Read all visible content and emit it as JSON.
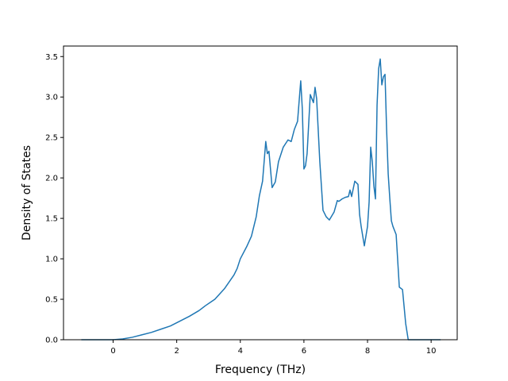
{
  "chart_data": {
    "type": "line",
    "title": "",
    "xlabel": "Frequency (THz)",
    "ylabel": "Density of States",
    "xlim": [
      -1.56,
      10.82
    ],
    "ylim": [
      0.0,
      3.63
    ],
    "xticks": [
      0,
      2,
      4,
      6,
      8,
      10
    ],
    "xtick_labels": [
      "0",
      "2",
      "4",
      "6",
      "8",
      "10"
    ],
    "yticks": [
      0.0,
      0.5,
      1.0,
      1.5,
      2.0,
      2.5,
      3.0,
      3.5
    ],
    "ytick_labels": [
      "0.0",
      "0.5",
      "1.0",
      "1.5",
      "2.0",
      "2.5",
      "3.0",
      "3.5"
    ],
    "grid": false,
    "line_color": "#1f77b4",
    "series": [
      {
        "x": [
          -1.0,
          -0.5,
          0.0,
          0.3,
          0.6,
          0.9,
          1.2,
          1.5,
          1.8,
          2.1,
          2.4,
          2.7,
          2.9,
          3.2,
          3.5,
          3.8,
          3.9,
          4.0,
          4.2,
          4.35,
          4.5,
          4.6,
          4.7,
          4.8,
          4.85,
          4.9,
          5.0,
          5.1,
          5.2,
          5.35,
          5.5,
          5.6,
          5.7,
          5.8,
          5.9,
          5.95,
          6.0,
          6.05,
          6.1,
          6.2,
          6.3,
          6.35,
          6.4,
          6.5,
          6.6,
          6.7,
          6.8,
          6.95,
          7.05,
          7.1,
          7.2,
          7.3,
          7.4,
          7.45,
          7.5,
          7.6,
          7.7,
          7.75,
          7.8,
          7.9,
          8.0,
          8.05,
          8.1,
          8.15,
          8.2,
          8.25,
          8.3,
          8.35,
          8.4,
          8.45,
          8.5,
          8.55,
          8.6,
          8.65,
          8.7,
          8.75,
          8.8,
          8.9,
          9.0,
          9.1,
          9.2,
          9.28,
          9.33,
          9.38,
          9.45,
          9.6,
          10.0,
          10.3
        ],
        "y": [
          0.0,
          0.0,
          0.0,
          0.01,
          0.03,
          0.06,
          0.09,
          0.13,
          0.17,
          0.23,
          0.29,
          0.36,
          0.42,
          0.5,
          0.63,
          0.8,
          0.88,
          1.0,
          1.15,
          1.28,
          1.52,
          1.78,
          1.96,
          2.45,
          2.3,
          2.33,
          1.88,
          1.95,
          2.2,
          2.38,
          2.47,
          2.45,
          2.6,
          2.7,
          3.2,
          2.85,
          2.11,
          2.15,
          2.3,
          3.03,
          2.93,
          3.12,
          2.98,
          2.2,
          1.6,
          1.52,
          1.48,
          1.58,
          1.72,
          1.71,
          1.74,
          1.76,
          1.77,
          1.85,
          1.77,
          1.96,
          1.92,
          1.55,
          1.4,
          1.16,
          1.4,
          1.7,
          2.38,
          2.2,
          1.9,
          1.74,
          2.9,
          3.35,
          3.47,
          3.15,
          3.25,
          3.28,
          2.6,
          2.05,
          1.75,
          1.47,
          1.4,
          1.3,
          0.65,
          0.62,
          0.2,
          0.0,
          0.0,
          0.0,
          0.0,
          0.0,
          0.0,
          0.0
        ]
      }
    ]
  }
}
